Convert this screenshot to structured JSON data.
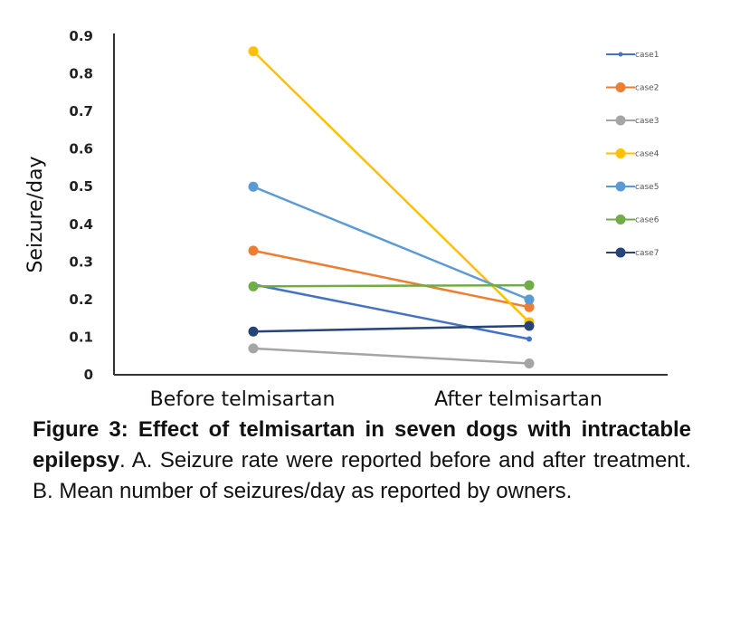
{
  "chart_data": {
    "type": "line",
    "categories": [
      "Before telmisartan",
      "After telmisartan"
    ],
    "ylabel": "Seizure/day",
    "xlabel": "",
    "ylim": [
      0,
      0.9
    ],
    "yticks": [
      "0",
      "0.1",
      "0.2",
      "0.3",
      "0.4",
      "0.5",
      "0.6",
      "0.7",
      "0.8",
      "0.9"
    ],
    "grid": false,
    "legend_position": "right",
    "series": [
      {
        "name": "case1",
        "values": [
          0.24,
          0.095
        ],
        "color": "#4472C4",
        "marker": "small"
      },
      {
        "name": "case2",
        "values": [
          0.33,
          0.18
        ],
        "color": "#ED7D31",
        "marker": "circle"
      },
      {
        "name": "case3",
        "values": [
          0.07,
          0.03
        ],
        "color": "#A5A5A5",
        "marker": "circle"
      },
      {
        "name": "case4",
        "values": [
          0.86,
          0.14
        ],
        "color": "#FFC000",
        "marker": "circle"
      },
      {
        "name": "case5",
        "values": [
          0.5,
          0.2
        ],
        "color": "#5B9BD5",
        "marker": "circle"
      },
      {
        "name": "case6",
        "values": [
          0.235,
          0.238
        ],
        "color": "#70AD47",
        "marker": "circle"
      },
      {
        "name": "case7",
        "values": [
          0.115,
          0.13
        ],
        "color": "#264478",
        "marker": "circle"
      }
    ]
  },
  "caption": {
    "bold": "Figure 3: Effect of telmisartan in seven dogs with intractable epilepsy",
    "rest": ". A. Seizure rate were reported before and after treatment. B. Mean number of seizures/day as reported by owners."
  }
}
